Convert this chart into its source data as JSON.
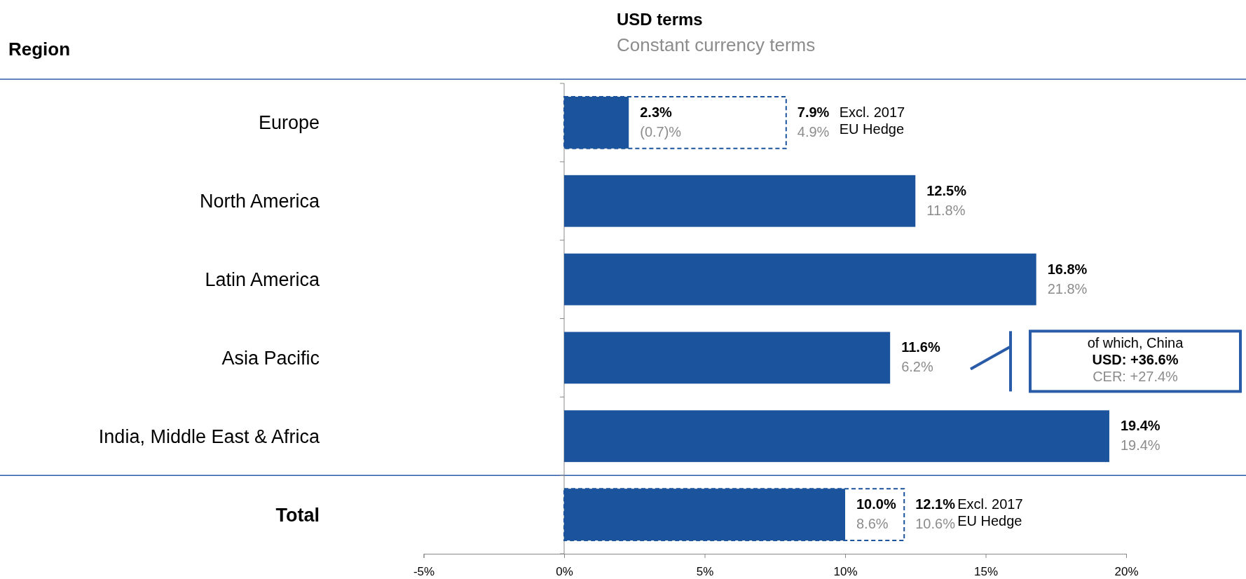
{
  "chart_data": {
    "type": "bar",
    "orientation": "horizontal",
    "title": "USD terms",
    "subtitle": "Constant currency terms",
    "ylabel": "Region",
    "categories": [
      "Europe",
      "North America",
      "Latin America",
      "Asia Pacific",
      "India, Middle East & Africa",
      "Total"
    ],
    "series": [
      {
        "color": "#1b549c",
        "values": [
          2.3,
          12.5,
          16.8,
          11.6,
          19.4,
          10.0
        ],
        "value_labels": [
          "2.3%",
          "12.5%",
          "16.8%",
          "11.6%",
          "19.4%",
          "10.0%"
        ]
      },
      {
        "name": "Excl. 2017 EU Hedge",
        "color": "#1b549c",
        "line_style": "dashed",
        "values": [
          7.9,
          null,
          null,
          null,
          null,
          12.1
        ],
        "value_labels": [
          "7.9%",
          null,
          null,
          null,
          null,
          "12.1%"
        ]
      }
    ],
    "xlim": [
      -5,
      20
    ],
    "xticks": [
      {
        "value": -5,
        "label": "-5%"
      },
      {
        "value": 0,
        "label": "0%"
      },
      {
        "value": 5,
        "label": "5%"
      },
      {
        "value": 10,
        "label": "10%"
      },
      {
        "value": 15,
        "label": "15%"
      },
      {
        "value": 20,
        "label": "20%"
      }
    ],
    "annotations": [
      {
        "text": "(0.7)%",
        "x": 2.3,
        "y": "Europe"
      },
      {
        "text": "11.8%",
        "x": 12.5,
        "y": "North America"
      },
      {
        "text": "21.8%",
        "x": 16.8,
        "y": "Latin America"
      },
      {
        "text": "6.2%",
        "x": 11.6,
        "y": "Asia Pacific"
      },
      {
        "text": "19.4%",
        "x": 19.4,
        "y": "India, Middle East & Africa"
      },
      {
        "text": "8.6%",
        "x": 10.0,
        "y": "Total"
      },
      {
        "text": "4.9%",
        "x": 7.9,
        "y": "Europe"
      },
      {
        "text": "10.6%",
        "x": 12.1,
        "y": "Total"
      },
      "of which, China",
      "USD: +36.6%",
      "CER: +27.4%"
    ]
  }
}
